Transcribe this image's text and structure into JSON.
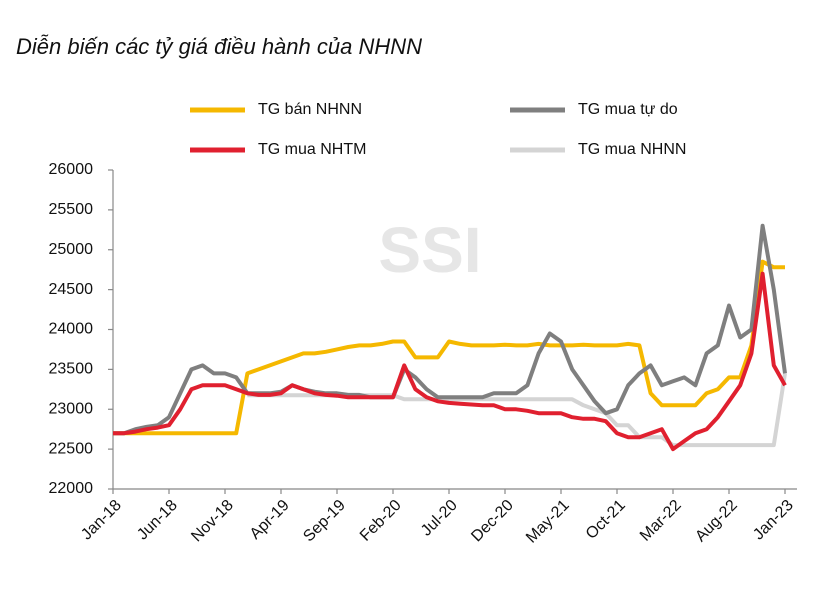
{
  "chart_data": {
    "type": "line",
    "title": "Diễn biến các tỷ giá điều hành của NHNN",
    "watermark": "SSI",
    "categories": [
      "Jan-18",
      null,
      null,
      null,
      null,
      "Jun-18",
      null,
      null,
      null,
      null,
      "Nov-18",
      null,
      null,
      null,
      null,
      "Apr-19",
      null,
      null,
      null,
      null,
      "Sep-19",
      null,
      null,
      null,
      null,
      "Feb-20",
      null,
      null,
      null,
      null,
      "Jul-20",
      null,
      null,
      null,
      null,
      "Dec-20",
      null,
      null,
      null,
      null,
      "May-21",
      null,
      null,
      null,
      null,
      "Oct-21",
      null,
      null,
      null,
      null,
      "Mar-22",
      null,
      null,
      null,
      null,
      "Aug-22",
      null,
      null,
      null,
      null,
      "Jan-23"
    ],
    "series": [
      {
        "name": "TG bán NHNN",
        "color": "#f5b800",
        "values": [
          22700,
          22700,
          22700,
          22700,
          22700,
          22700,
          22700,
          22700,
          22700,
          22700,
          22700,
          22700,
          23450,
          23500,
          23550,
          23600,
          23650,
          23700,
          23700,
          23720,
          23750,
          23780,
          23800,
          23800,
          23820,
          23850,
          23850,
          23650,
          23650,
          23650,
          23850,
          23820,
          23800,
          23800,
          23800,
          23810,
          23800,
          23800,
          23820,
          23800,
          23800,
          23800,
          23810,
          23800,
          23800,
          23800,
          23820,
          23800,
          23200,
          23050,
          23050,
          23050,
          23050,
          23200,
          23250,
          23400,
          23400,
          23800,
          24850,
          24780,
          24780
        ]
      },
      {
        "name": "TG mua tự do",
        "color": "#7f7f7f",
        "values": [
          22700,
          22700,
          22750,
          22780,
          22800,
          22900,
          23200,
          23500,
          23550,
          23450,
          23450,
          23400,
          23200,
          23200,
          23200,
          23220,
          23300,
          23250,
          23220,
          23200,
          23200,
          23180,
          23180,
          23150,
          23150,
          23150,
          23500,
          23400,
          23250,
          23150,
          23150,
          23150,
          23150,
          23150,
          23200,
          23200,
          23200,
          23300,
          23700,
          23950,
          23850,
          23500,
          23300,
          23100,
          22950,
          23000,
          23300,
          23450,
          23550,
          23300,
          23350,
          23400,
          23300,
          23700,
          23800,
          24300,
          23900,
          24000,
          25300,
          24500,
          23450
        ]
      },
      {
        "name": "TG mua NHTM",
        "color": "#e0202f",
        "values": [
          22700,
          22700,
          22720,
          22750,
          22770,
          22800,
          23000,
          23250,
          23300,
          23300,
          23300,
          23250,
          23200,
          23180,
          23180,
          23200,
          23300,
          23250,
          23200,
          23180,
          23170,
          23150,
          23150,
          23150,
          23150,
          23150,
          23550,
          23250,
          23150,
          23100,
          23080,
          23070,
          23060,
          23050,
          23050,
          23000,
          23000,
          22980,
          22950,
          22950,
          22950,
          22900,
          22880,
          22880,
          22850,
          22700,
          22650,
          22650,
          22700,
          22750,
          22500,
          22600,
          22700,
          22750,
          22900,
          23100,
          23300,
          23700,
          24700,
          23550,
          23300
        ]
      },
      {
        "name": "TG mua NHNN",
        "color": "#d4d4d4",
        "values": [
          null,
          null,
          null,
          null,
          null,
          null,
          null,
          null,
          null,
          null,
          null,
          null,
          23175,
          23175,
          23175,
          23175,
          23175,
          23175,
          23175,
          23175,
          23175,
          23175,
          23175,
          23175,
          23175,
          23175,
          23125,
          23125,
          23125,
          23125,
          23125,
          23125,
          23125,
          23125,
          23125,
          23125,
          23125,
          23125,
          23125,
          23125,
          23125,
          23125,
          23050,
          23000,
          22950,
          22800,
          22800,
          22650,
          22650,
          22650,
          22550,
          22550,
          22550,
          22550,
          22550,
          22550,
          22550,
          22550,
          22550,
          22550,
          23450
        ]
      }
    ],
    "ylim": [
      22000,
      26000
    ],
    "yticks": [
      22000,
      22500,
      23000,
      23500,
      24000,
      24500,
      25000,
      25500,
      26000
    ],
    "grid": false
  }
}
